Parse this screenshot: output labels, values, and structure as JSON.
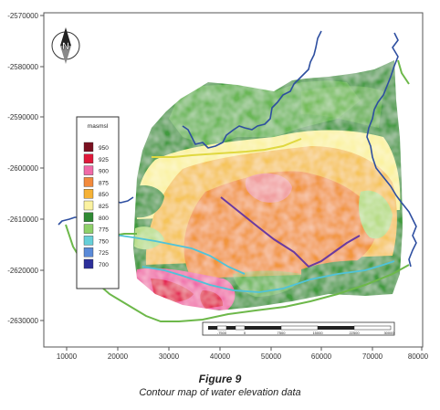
{
  "figure": {
    "number": "Figure 9",
    "caption": "Contour map of water elevation data"
  },
  "colors": {
    "river": "#2e4fa0",
    "road_yellow": "#e0d840",
    "road_green": "#6db84a",
    "channel_cyan": "#4fc3d9",
    "line_purple": "#6a3aa0"
  },
  "map": {
    "y_ticks": [
      "-2570000",
      "-2580000",
      "-2590000",
      "-2600000",
      "-2610000",
      "-2620000",
      "-2630000"
    ],
    "x_ticks": [
      "10000",
      "20000",
      "30000",
      "40000",
      "50000",
      "60000",
      "70000",
      "80000"
    ],
    "north_arrow": {
      "letter": "N",
      "icon": "north-arrow-icon"
    },
    "scalebar": {
      "labels": [
        "-7500",
        "0",
        "7500",
        "15000",
        "22500",
        "30000"
      ]
    },
    "legend": {
      "title": "masmsl",
      "items": [
        {
          "label": "950",
          "color": "#7a1020"
        },
        {
          "label": "925",
          "color": "#e0183a"
        },
        {
          "label": "900",
          "color": "#f06aa8"
        },
        {
          "label": "875",
          "color": "#f28a3c"
        },
        {
          "label": "850",
          "color": "#f6b236"
        },
        {
          "label": "825",
          "color": "#fbf2a0"
        },
        {
          "label": "800",
          "color": "#2f8a34"
        },
        {
          "label": "775",
          "color": "#8fd06a"
        },
        {
          "label": "750",
          "color": "#66cfd8"
        },
        {
          "label": "725",
          "color": "#5a8ad8"
        },
        {
          "label": "700",
          "color": "#2c2f9a"
        }
      ]
    }
  }
}
